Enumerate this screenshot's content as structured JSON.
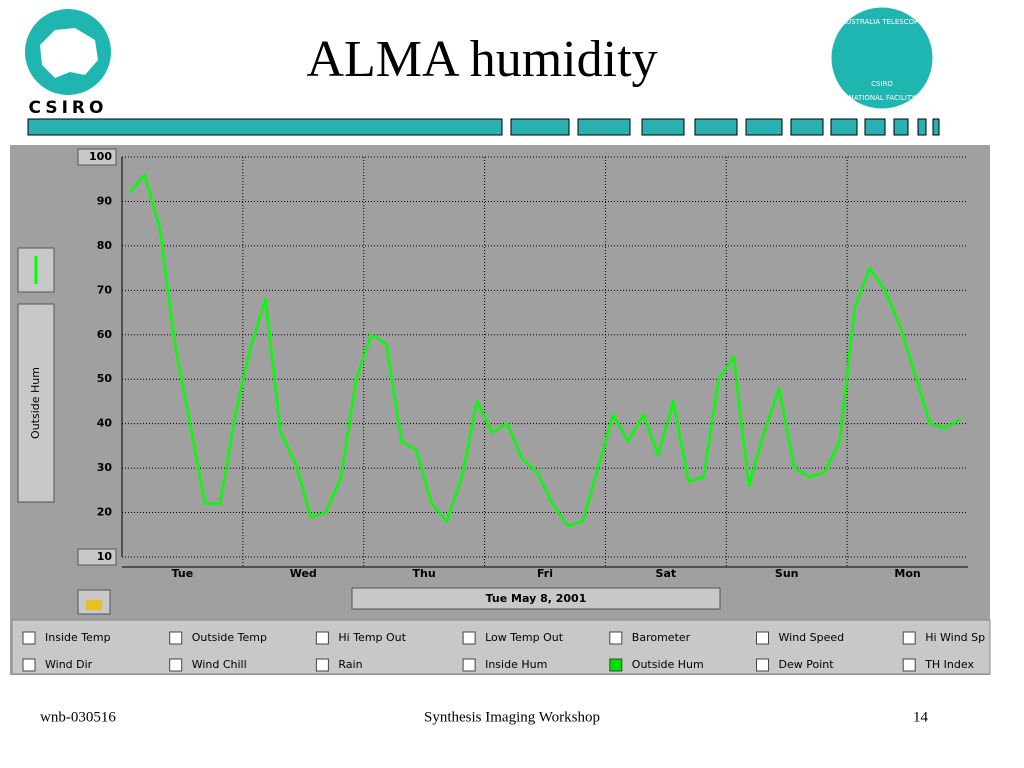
{
  "slide": {
    "title": "ALMA humidity",
    "logo_left": "CSIRO",
    "logo_right_top": "AUSTRALIA TELESCOPE",
    "logo_right_bottom": "NATIONAL FACILITY",
    "logo_right_center": "CSIRO",
    "footer_left": "wnb-030516",
    "footer_center": "Synthesis Imaging Workshop",
    "footer_right": "14"
  },
  "chart_data": {
    "type": "line",
    "categories": [
      null,
      null,
      null,
      null,
      "Tue",
      null,
      null,
      null,
      null,
      null,
      null,
      null,
      "Wed",
      null,
      null,
      null,
      null,
      null,
      null,
      null,
      "Thu",
      null,
      null,
      null,
      null,
      null,
      null,
      null,
      "Fri",
      null,
      null,
      null,
      null,
      null,
      null,
      null,
      "Sat",
      null,
      null,
      null,
      null,
      null,
      null,
      null,
      "Sun",
      null,
      null,
      null,
      null,
      null,
      null,
      null,
      "Mon",
      null,
      null,
      null
    ],
    "series": [
      {
        "name": "Outside Hum",
        "color": "#00ff00",
        "values": [
          92,
          96,
          84,
          58,
          40,
          22,
          22,
          42,
          57,
          68,
          38,
          31,
          19,
          20,
          28,
          50,
          60,
          58,
          36,
          34,
          22,
          18,
          28,
          45,
          38,
          40,
          32,
          29,
          22,
          17,
          18,
          30,
          42,
          36,
          42,
          33,
          45,
          27,
          28,
          50,
          55,
          26,
          38,
          48,
          30,
          28,
          29,
          36,
          66,
          75,
          70,
          62,
          51,
          40,
          39,
          41
        ]
      }
    ],
    "ylim": [
      10,
      100
    ],
    "yticks": [
      10,
      20,
      30,
      40,
      50,
      60,
      70,
      80,
      90,
      100
    ],
    "grid": true,
    "date": "Tue May 8, 2001"
  },
  "controls": [
    {
      "label": "Inside Temp",
      "checked": false
    },
    {
      "label": "Outside Temp",
      "checked": false
    },
    {
      "label": "Hi Temp Out",
      "checked": false
    },
    {
      "label": "Low Temp Out",
      "checked": false
    },
    {
      "label": "Barometer",
      "checked": false
    },
    {
      "label": "Wind Speed",
      "checked": false
    },
    {
      "label": "Hi Wind Sp",
      "checked": false
    },
    {
      "label": "Wind Dir",
      "checked": false
    },
    {
      "label": "Wind Chill",
      "checked": false
    },
    {
      "label": "Rain",
      "checked": false
    },
    {
      "label": "Inside Hum",
      "checked": false
    },
    {
      "label": "Outside Hum",
      "checked": true
    },
    {
      "label": "Dew Point",
      "checked": false
    },
    {
      "label": "TH Index",
      "checked": false
    }
  ]
}
